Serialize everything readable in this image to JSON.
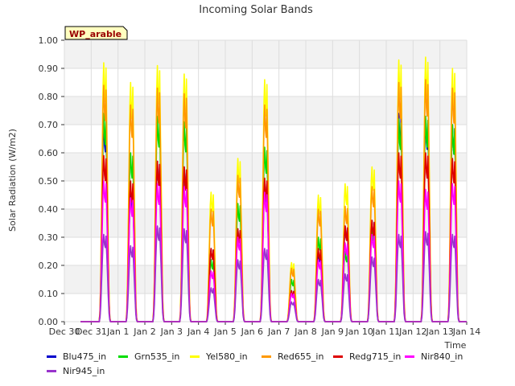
{
  "chart_data": {
    "type": "line",
    "title": "Incoming Solar Bands",
    "xlabel": "Time",
    "ylabel": "Solar Radiation (W/m2)",
    "ylim": [
      0.0,
      1.0
    ],
    "yticks": [
      "0.00",
      "0.10",
      "0.20",
      "0.30",
      "0.40",
      "0.50",
      "0.60",
      "0.70",
      "0.80",
      "0.90",
      "1.00"
    ],
    "xticks": [
      "Dec 30",
      "Dec 31",
      "Jan 1",
      "Jan 2",
      "Jan 3",
      "Jan 4",
      "Jan 5",
      "Jan 6",
      "Jan 7",
      "Jan 8",
      "Jan 9",
      "Jan 10",
      "Jan 11",
      "Jan 12",
      "Jan 13",
      "Jan 14"
    ],
    "grid": true,
    "legend_position": "bottom",
    "annotation": "WP_arable",
    "days": [
      "Dec 31",
      "Jan 1",
      "Jan 2",
      "Jan 3",
      "Jan 4",
      "Jan 5",
      "Jan 6",
      "Jan 7",
      "Jan 8",
      "Jan 9",
      "Jan 10",
      "Jan 11",
      "Jan 12",
      "Jan 13"
    ],
    "series": [
      {
        "name": "Blu475_in",
        "color": "#0000cc",
        "daily_peak": [
          0.71,
          0.46,
          0.57,
          0.55,
          0.26,
          0.33,
          0.5,
          0.11,
          0.25,
          0.34,
          0.36,
          0.74,
          0.72,
          0.7
        ]
      },
      {
        "name": "Grn535_in",
        "color": "#00dd00",
        "daily_peak": [
          0.74,
          0.6,
          0.73,
          0.71,
          0.22,
          0.42,
          0.62,
          0.15,
          0.3,
          0.25,
          0.34,
          0.72,
          0.73,
          0.7
        ]
      },
      {
        "name": "Yel580_in",
        "color": "#ffff00",
        "daily_peak": [
          0.92,
          0.85,
          0.91,
          0.88,
          0.46,
          0.58,
          0.86,
          0.21,
          0.45,
          0.49,
          0.55,
          0.93,
          0.94,
          0.9
        ]
      },
      {
        "name": "Red655_in",
        "color": "#ff9900",
        "daily_peak": [
          0.84,
          0.77,
          0.83,
          0.81,
          0.4,
          0.52,
          0.77,
          0.19,
          0.4,
          0.41,
          0.48,
          0.85,
          0.86,
          0.83
        ]
      },
      {
        "name": "Redg715_in",
        "color": "#dd0000",
        "daily_peak": [
          0.59,
          0.5,
          0.57,
          0.55,
          0.26,
          0.33,
          0.51,
          0.11,
          0.26,
          0.34,
          0.36,
          0.6,
          0.6,
          0.58
        ]
      },
      {
        "name": "Nir840_in",
        "color": "#ff00ff",
        "daily_peak": [
          0.5,
          0.44,
          0.49,
          0.48,
          0.18,
          0.3,
          0.46,
          0.1,
          0.22,
          0.28,
          0.31,
          0.5,
          0.47,
          0.49
        ]
      },
      {
        "name": "Nir945_in",
        "color": "#9933cc",
        "daily_peak": [
          0.31,
          0.27,
          0.34,
          0.33,
          0.12,
          0.22,
          0.26,
          0.07,
          0.15,
          0.17,
          0.23,
          0.31,
          0.32,
          0.31
        ]
      }
    ]
  }
}
